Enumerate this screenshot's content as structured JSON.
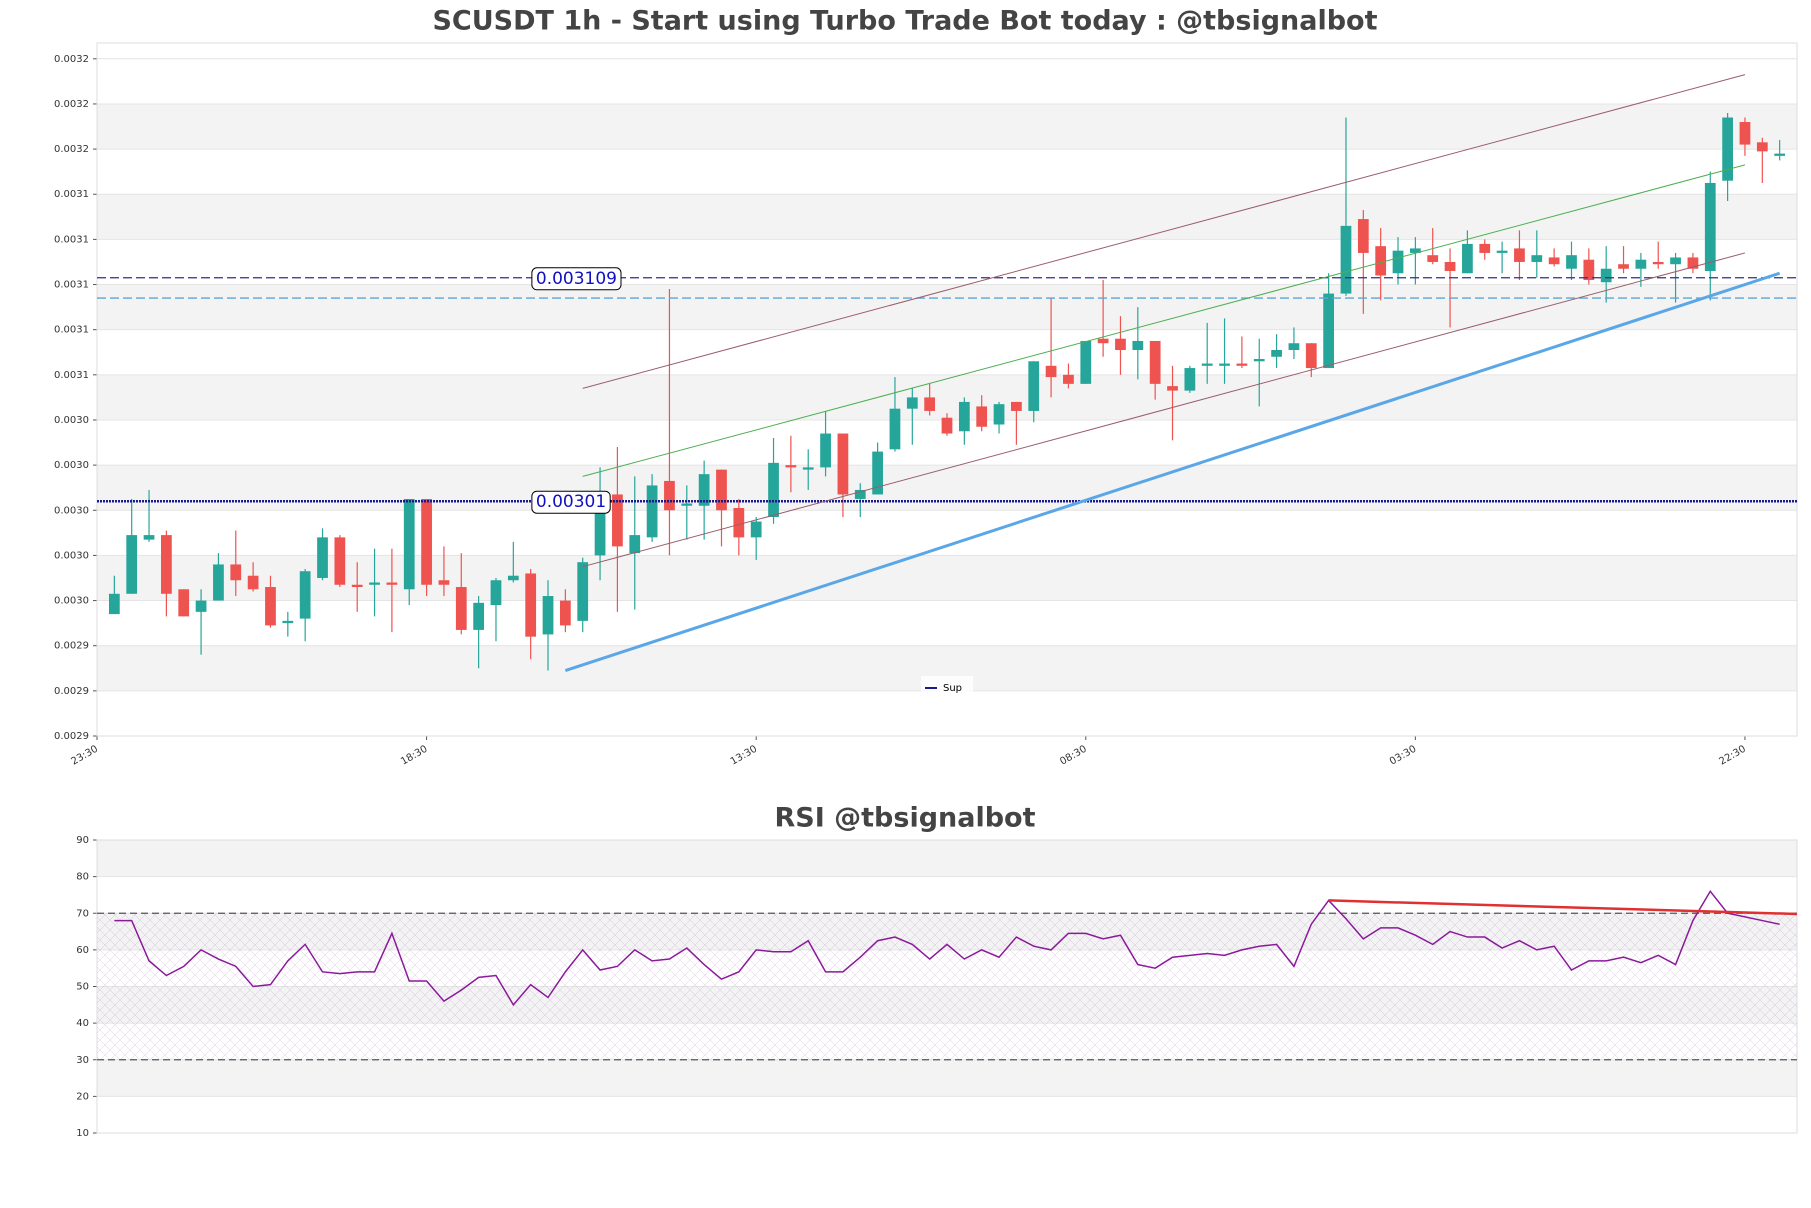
{
  "chart_data": [
    {
      "type": "candlestick",
      "title": "SCUSDT 1h - Start using Turbo Trade Bot today : @tbsignalbot",
      "up_color": "#26a69a",
      "down_color": "#ef5350",
      "grid": true,
      "legend": "lower center",
      "xlim": [
        -1,
        97
      ],
      "xticks": [
        {
          "value": -1,
          "label": "23:30"
        },
        {
          "value": 18,
          "label": "18:30"
        },
        {
          "value": 37,
          "label": "13:30"
        },
        {
          "value": 56,
          "label": "08:30"
        },
        {
          "value": 75,
          "label": "03:30"
        },
        {
          "value": 94,
          "label": "22:30"
        }
      ],
      "ylim": [
        0.002906,
        0.003213
      ],
      "yticks": [
        {
          "value": 0.002906,
          "label": "0.0029"
        },
        {
          "value": 0.002926,
          "label": "0.0029"
        },
        {
          "value": 0.002946,
          "label": "0.0029"
        },
        {
          "value": 0.002966,
          "label": "0.0030"
        },
        {
          "value": 0.002986,
          "label": "0.0030"
        },
        {
          "value": 0.003006,
          "label": "0.0030"
        },
        {
          "value": 0.003026,
          "label": "0.0030"
        },
        {
          "value": 0.003046,
          "label": "0.0030"
        },
        {
          "value": 0.003066,
          "label": "0.0031"
        },
        {
          "value": 0.003086,
          "label": "0.0031"
        },
        {
          "value": 0.003106,
          "label": "0.0031"
        },
        {
          "value": 0.003126,
          "label": "0.0031"
        },
        {
          "value": 0.003146,
          "label": "0.0031"
        },
        {
          "value": 0.003166,
          "label": "0.0032"
        },
        {
          "value": 0.003186,
          "label": "0.0032"
        },
        {
          "value": 0.003206,
          "label": "0.0032"
        }
      ],
      "x": [
        0,
        1,
        2,
        3,
        4,
        5,
        6,
        7,
        8,
        9,
        10,
        11,
        12,
        13,
        14,
        15,
        16,
        17,
        18,
        19,
        20,
        21,
        22,
        23,
        24,
        25,
        26,
        27,
        28,
        29,
        30,
        31,
        32,
        33,
        34,
        35,
        36,
        37,
        38,
        39,
        40,
        41,
        42,
        43,
        44,
        45,
        46,
        47,
        48,
        49,
        50,
        51,
        52,
        53,
        54,
        55,
        56,
        57,
        58,
        59,
        60,
        61,
        62,
        63,
        64,
        65,
        66,
        67,
        68,
        69,
        70,
        71,
        72,
        73,
        74,
        75,
        76,
        77,
        78,
        79,
        80,
        81,
        82,
        83,
        84,
        85,
        86,
        87,
        88,
        89,
        90,
        91,
        92,
        93,
        94,
        95,
        96
      ],
      "open": [
        0.00296,
        0.002969,
        0.002993,
        0.002995,
        0.002971,
        0.002961,
        0.002966,
        0.002982,
        0.002977,
        0.002972,
        0.002956,
        0.002958,
        0.002976,
        0.002994,
        0.002973,
        0.002973,
        0.002974,
        0.002971,
        0.003011,
        0.002975,
        0.002972,
        0.002953,
        0.002964,
        0.002975,
        0.002978,
        0.002951,
        0.002966,
        0.002957,
        0.002986,
        0.003013,
        0.002987,
        0.002994,
        0.003019,
        0.003008,
        0.003008,
        0.003024,
        0.003007,
        0.002994,
        0.003003,
        0.003026,
        0.003024,
        0.003025,
        0.00304,
        0.003011,
        0.003013,
        0.003033,
        0.003051,
        0.003056,
        0.003047,
        0.003041,
        0.003052,
        0.003044,
        0.003054,
        0.00305,
        0.00307,
        0.003066,
        0.003062,
        0.003082,
        0.003082,
        0.003077,
        0.003081,
        0.003061,
        0.003059,
        0.00307,
        0.00307,
        0.003071,
        0.003072,
        0.003074,
        0.003077,
        0.00308,
        0.003069,
        0.003102,
        0.003135,
        0.003123,
        0.003111,
        0.00312,
        0.003119,
        0.003116,
        0.003111,
        0.003124,
        0.00312,
        0.003122,
        0.003116,
        0.003118,
        0.003113,
        0.003117,
        0.003107,
        0.003115,
        0.003113,
        0.003116,
        0.003115,
        0.003118,
        0.003112,
        0.003152,
        0.003178,
        0.003169,
        0.003163
      ],
      "high": [
        0.002977,
        0.003011,
        0.003015,
        0.002997,
        0.002971,
        0.002971,
        0.002987,
        0.002997,
        0.002983,
        0.002977,
        0.002961,
        0.00298,
        0.002998,
        0.002995,
        0.002983,
        0.002989,
        0.002989,
        0.003011,
        0.003011,
        0.00299,
        0.002987,
        0.002968,
        0.002976,
        0.002992,
        0.00298,
        0.002975,
        0.002971,
        0.002985,
        0.003025,
        0.003034,
        0.003021,
        0.003022,
        0.003104,
        0.003017,
        0.003028,
        0.003024,
        0.003011,
        0.003003,
        0.003038,
        0.003039,
        0.003033,
        0.00305,
        0.00304,
        0.003018,
        0.003036,
        0.003065,
        0.00306,
        0.003062,
        0.003049,
        0.003056,
        0.003057,
        0.003054,
        0.003054,
        0.003072,
        0.0031,
        0.003071,
        0.003081,
        0.003108,
        0.003092,
        0.003096,
        0.003081,
        0.00307,
        0.00307,
        0.003089,
        0.003091,
        0.003083,
        0.003082,
        0.003084,
        0.003087,
        0.00308,
        0.003111,
        0.00318,
        0.003139,
        0.003131,
        0.003127,
        0.003127,
        0.003131,
        0.003122,
        0.00313,
        0.003126,
        0.003125,
        0.00313,
        0.00313,
        0.003122,
        0.003125,
        0.003122,
        0.003123,
        0.003123,
        0.00312,
        0.003125,
        0.00312,
        0.00312,
        0.003156,
        0.003182,
        0.00318,
        0.003171,
        0.00317
      ],
      "low": [
        0.00296,
        0.002969,
        0.002992,
        0.002959,
        0.002959,
        0.002942,
        0.002966,
        0.002968,
        0.00297,
        0.002954,
        0.00295,
        0.002948,
        0.002975,
        0.002972,
        0.002961,
        0.002959,
        0.002952,
        0.002964,
        0.002968,
        0.002968,
        0.002951,
        0.002936,
        0.002948,
        0.002974,
        0.00294,
        0.002935,
        0.002952,
        0.002952,
        0.002975,
        0.002961,
        0.002962,
        0.002992,
        0.002986,
        0.002993,
        0.002993,
        0.00299,
        0.002986,
        0.002984,
        0.003,
        0.003014,
        0.003015,
        0.003021,
        0.003003,
        0.003003,
        0.003013,
        0.003032,
        0.003035,
        0.003048,
        0.003039,
        0.003035,
        0.003041,
        0.00304,
        0.003035,
        0.003045,
        0.003056,
        0.00306,
        0.003062,
        0.003074,
        0.003066,
        0.003064,
        0.003055,
        0.003037,
        0.003058,
        0.003062,
        0.003062,
        0.003069,
        0.003052,
        0.003069,
        0.003073,
        0.003065,
        0.003069,
        0.003101,
        0.003093,
        0.003099,
        0.003106,
        0.003106,
        0.003115,
        0.003087,
        0.003111,
        0.003117,
        0.003111,
        0.003108,
        0.003109,
        0.003114,
        0.003108,
        0.003106,
        0.003098,
        0.003111,
        0.003105,
        0.003113,
        0.003098,
        0.003111,
        0.003099,
        0.003143,
        0.003163,
        0.003151,
        0.003161
      ],
      "close": [
        0.002969,
        0.002995,
        0.002995,
        0.002969,
        0.002959,
        0.002966,
        0.002982,
        0.002975,
        0.002971,
        0.002955,
        0.002957,
        0.002979,
        0.002994,
        0.002973,
        0.002972,
        0.002974,
        0.002973,
        0.003011,
        0.002973,
        0.002973,
        0.002953,
        0.002965,
        0.002975,
        0.002977,
        0.00295,
        0.002968,
        0.002955,
        0.002983,
        0.003011,
        0.00299,
        0.002995,
        0.003017,
        0.003006,
        0.003009,
        0.003022,
        0.003006,
        0.002994,
        0.003001,
        0.003027,
        0.003025,
        0.003025,
        0.00304,
        0.003013,
        0.003015,
        0.003032,
        0.003051,
        0.003056,
        0.00305,
        0.00304,
        0.003054,
        0.003043,
        0.003053,
        0.00305,
        0.003072,
        0.003065,
        0.003062,
        0.003081,
        0.00308,
        0.003077,
        0.003081,
        0.003062,
        0.003059,
        0.003069,
        0.003071,
        0.003071,
        0.00307,
        0.003073,
        0.003077,
        0.00308,
        0.003069,
        0.003102,
        0.003132,
        0.00312,
        0.00311,
        0.003121,
        0.003122,
        0.003116,
        0.003112,
        0.003124,
        0.00312,
        0.003121,
        0.003116,
        0.003119,
        0.003115,
        0.003119,
        0.003108,
        0.003113,
        0.003113,
        0.003117,
        0.003115,
        0.003118,
        0.003113,
        0.003151,
        0.00318,
        0.003168,
        0.003165,
        0.003164
      ],
      "hlines": [
        {
          "value": 0.003109,
          "color": "#2e2e8f",
          "style": "dashed",
          "labeled": true
        },
        {
          "value": 0.00301,
          "color": "#1a1a8c",
          "style": "dotted",
          "labeled": true,
          "name": "Sup"
        },
        {
          "value": 0.0031,
          "color": "#5aa6d6",
          "style": "dashed",
          "labeled": false
        }
      ],
      "lines": [
        {
          "x": [
            27,
            94
          ],
          "y": [
            0.00306,
            0.003199
          ],
          "color": "#9b5d6a",
          "width": 1
        },
        {
          "x": [
            27,
            94
          ],
          "y": [
            0.003021,
            0.003159
          ],
          "color": "#4caf50",
          "width": 1
        },
        {
          "x": [
            27,
            94
          ],
          "y": [
            0.002981,
            0.00312
          ],
          "color": "#9b5d6a",
          "width": 1
        },
        {
          "x": [
            26,
            96
          ],
          "y": [
            0.002935,
            0.003111
          ],
          "color": "#5aa6e6",
          "width": 3
        }
      ]
    },
    {
      "type": "line",
      "title": "RSI @tbsignalbot",
      "color": "#8b1a9b",
      "grid": true,
      "xlim": [
        -1,
        97
      ],
      "ylim": [
        10,
        90
      ],
      "yticks": [
        10,
        20,
        30,
        40,
        50,
        60,
        70,
        80,
        90
      ],
      "levels": [
        70,
        30
      ],
      "x": [
        0,
        1,
        2,
        3,
        4,
        5,
        6,
        7,
        8,
        9,
        10,
        11,
        12,
        13,
        14,
        15,
        16,
        17,
        18,
        19,
        20,
        21,
        22,
        23,
        24,
        25,
        26,
        27,
        28,
        29,
        30,
        31,
        32,
        33,
        34,
        35,
        36,
        37,
        38,
        39,
        40,
        41,
        42,
        43,
        44,
        45,
        46,
        47,
        48,
        49,
        50,
        51,
        52,
        53,
        54,
        55,
        56,
        57,
        58,
        59,
        60,
        61,
        62,
        63,
        64,
        65,
        66,
        67,
        68,
        69,
        70,
        71,
        72,
        73,
        74,
        75,
        76,
        77,
        78,
        79,
        80,
        81,
        82,
        83,
        84,
        85,
        86,
        87,
        88,
        89,
        90,
        91,
        92,
        93,
        94,
        95,
        96
      ],
      "values": [
        68,
        68,
        57,
        53,
        55.5,
        60,
        57.5,
        55.5,
        50,
        50.5,
        57,
        61.5,
        54,
        53.5,
        54,
        54,
        64.5,
        51.5,
        51.5,
        46,
        49,
        52.5,
        53,
        45,
        50.5,
        47,
        54,
        60,
        54.5,
        55.5,
        60,
        57,
        57.5,
        60.5,
        56,
        52,
        54,
        60,
        59.5,
        59.5,
        62.5,
        54,
        54,
        58,
        62.5,
        63.5,
        61.5,
        57.5,
        61.5,
        57.5,
        60,
        58,
        63.5,
        61,
        60,
        64.5,
        64.5,
        63,
        64,
        56,
        55,
        58,
        58.5,
        59,
        58.5,
        60,
        61,
        61.5,
        55.5,
        67,
        73.5,
        68.5,
        63,
        66,
        66,
        64,
        61.5,
        65,
        63.5,
        63.5,
        60.5,
        62.5,
        60,
        61,
        54.5,
        57,
        57,
        58,
        56.5,
        58.5,
        56,
        68,
        76,
        70,
        69,
        68,
        67
      ],
      "lines": [
        {
          "x": [
            70,
            97
          ],
          "y": [
            73.5,
            69.8
          ],
          "color": "#e03030",
          "width": 2.5
        }
      ]
    }
  ]
}
